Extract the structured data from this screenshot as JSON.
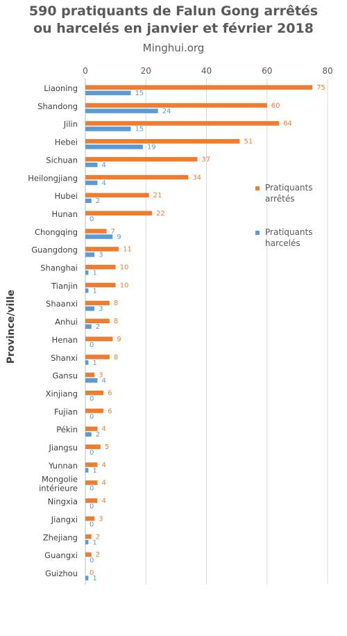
{
  "chart_data": {
    "type": "bar",
    "orientation": "horizontal",
    "title_lines": [
      "590 pratiquants de Falun Gong arrêtés",
      "ou harcelés en janvier et février 2018"
    ],
    "subtitle": "Minghui.org",
    "xlabel": "",
    "ylabel": "Province/ville",
    "xlim": [
      0,
      80
    ],
    "xticks": [
      0,
      20,
      40,
      60,
      80
    ],
    "grid": true,
    "legend_position": "right",
    "categories": [
      [
        "Liaoning"
      ],
      [
        "Shandong"
      ],
      [
        "Jilin"
      ],
      [
        "Hebei"
      ],
      [
        "Sichuan"
      ],
      [
        "Heilongjiang"
      ],
      [
        "Hubei"
      ],
      [
        "Hunan"
      ],
      [
        "Chongqing"
      ],
      [
        "Guangdong"
      ],
      [
        "Shanghai"
      ],
      [
        "Tianjin"
      ],
      [
        "Shaanxi"
      ],
      [
        "Anhui"
      ],
      [
        "Henan"
      ],
      [
        "Shanxi"
      ],
      [
        "Gansu"
      ],
      [
        "Xinjiang"
      ],
      [
        "Fujian"
      ],
      [
        "Pékin"
      ],
      [
        "Jiangsu"
      ],
      [
        "Yunnan"
      ],
      [
        "Mongolie",
        "intérieure"
      ],
      [
        "Ningxia"
      ],
      [
        "Jiangxi"
      ],
      [
        "Zhejiang"
      ],
      [
        "Guangxi"
      ],
      [
        "Guizhou"
      ]
    ],
    "series": [
      {
        "name_lines": [
          "Pratiquants",
          "arrêtés"
        ],
        "color": "#ED7D31",
        "values": [
          75,
          60,
          64,
          51,
          37,
          34,
          21,
          22,
          7,
          11,
          10,
          10,
          8,
          8,
          9,
          8,
          3,
          6,
          6,
          4,
          5,
          4,
          4,
          4,
          3,
          2,
          2,
          0
        ]
      },
      {
        "name_lines": [
          "Pratiquants",
          "harcelés"
        ],
        "color": "#5B9BD5",
        "values": [
          15,
          24,
          15,
          19,
          4,
          4,
          2,
          0,
          9,
          3,
          1,
          1,
          3,
          2,
          0,
          1,
          4,
          0,
          0,
          2,
          0,
          1,
          0,
          0,
          0,
          1,
          0,
          1
        ]
      }
    ]
  }
}
